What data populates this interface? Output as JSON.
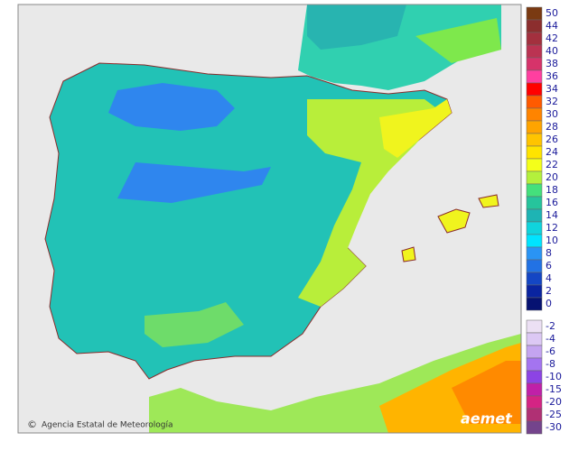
{
  "map": {
    "attribution": "Agencia Estatal de Meteorología",
    "logo": "aemet",
    "legend": {
      "positive": [
        {
          "value": 50,
          "color": "#7a3a12"
        },
        {
          "value": 44,
          "color": "#8c2e2e"
        },
        {
          "value": 42,
          "color": "#a3303e"
        },
        {
          "value": 40,
          "color": "#bb3352"
        },
        {
          "value": 38,
          "color": "#d6336a"
        },
        {
          "value": 36,
          "color": "#ff3fa0"
        },
        {
          "value": 34,
          "color": "#ff0000"
        },
        {
          "value": 32,
          "color": "#ff5a00"
        },
        {
          "value": 30,
          "color": "#ff8400"
        },
        {
          "value": 28,
          "color": "#ffa400"
        },
        {
          "value": 26,
          "color": "#ffc400"
        },
        {
          "value": 24,
          "color": "#ffe400"
        },
        {
          "value": 22,
          "color": "#f4ff1a"
        },
        {
          "value": 20,
          "color": "#b4f03c"
        },
        {
          "value": 18,
          "color": "#44e07c"
        },
        {
          "value": 16,
          "color": "#26c49c"
        },
        {
          "value": 14,
          "color": "#1eb4b4"
        },
        {
          "value": 12,
          "color": "#10d4dc"
        },
        {
          "value": 10,
          "color": "#00e4ff"
        },
        {
          "value": 8,
          "color": "#2a94f4"
        },
        {
          "value": 6,
          "color": "#2272e4"
        },
        {
          "value": 4,
          "color": "#1446c4"
        },
        {
          "value": 2,
          "color": "#0a24a0"
        },
        {
          "value": 0,
          "color": "#061272"
        }
      ],
      "negative": [
        {
          "value": -2,
          "color": "#ece0f4"
        },
        {
          "value": -4,
          "color": "#dcc8f4"
        },
        {
          "value": -6,
          "color": "#c4a4f0"
        },
        {
          "value": -8,
          "color": "#a474f0"
        },
        {
          "value": -10,
          "color": "#8c44e4"
        },
        {
          "value": -15,
          "color": "#c020a8"
        },
        {
          "value": -20,
          "color": "#d42484"
        },
        {
          "value": -25,
          "color": "#b03074"
        },
        {
          "value": -30,
          "color": "#74448c"
        }
      ]
    }
  }
}
